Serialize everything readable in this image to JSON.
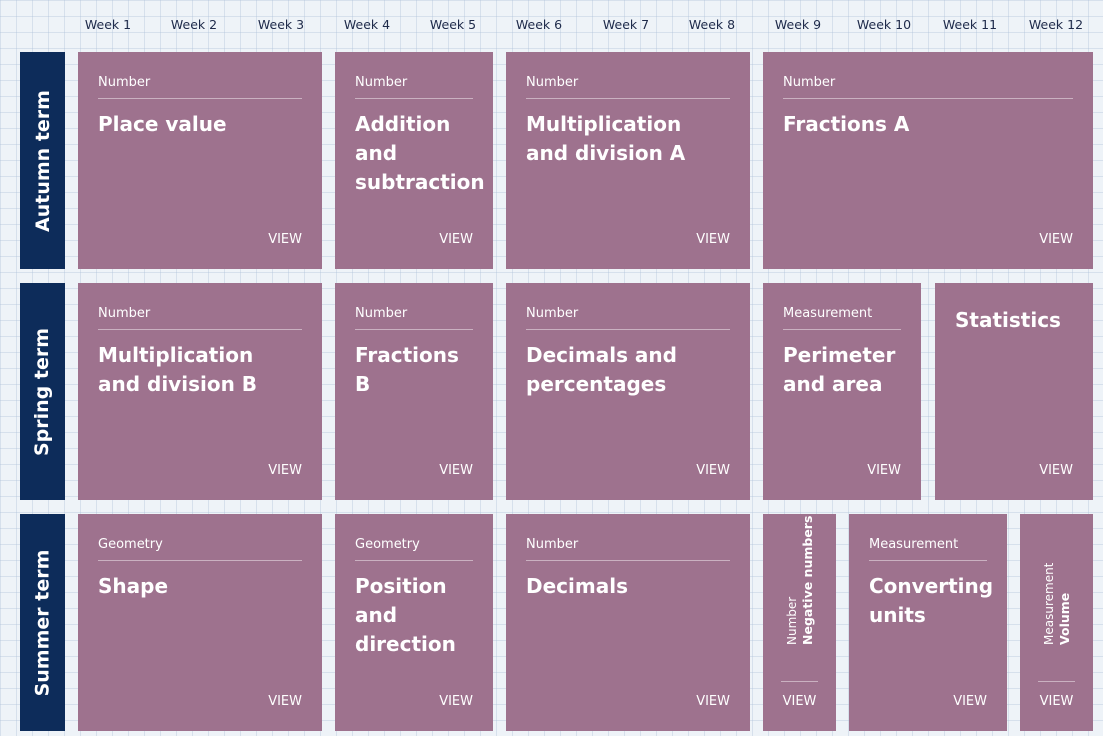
{
  "weeks": [
    "Week 1",
    "Week 2",
    "Week 3",
    "Week 4",
    "Week 5",
    "Week 6",
    "Week 7",
    "Week 8",
    "Week 9",
    "Week 10",
    "Week 11",
    "Week 12"
  ],
  "terms": {
    "autumn": "Autumn term",
    "spring": "Spring term",
    "summer": "Summer term"
  },
  "view_label": "VIEW",
  "autumn": [
    {
      "category": "Number",
      "title": "Place value"
    },
    {
      "category": "Number",
      "title": "Addition and subtraction"
    },
    {
      "category": "Number",
      "title": "Multiplication and division A"
    },
    {
      "category": "Number",
      "title": "Fractions A"
    }
  ],
  "spring": [
    {
      "category": "Number",
      "title": "Multiplication and division B"
    },
    {
      "category": "Number",
      "title": "Fractions B"
    },
    {
      "category": "Number",
      "title": "Decimals and percentages"
    },
    {
      "category": "Measurement",
      "title": "Perimeter and area"
    },
    {
      "category": "",
      "title": "Statistics"
    }
  ],
  "summer": [
    {
      "category": "Geometry",
      "title": "Shape"
    },
    {
      "category": "Geometry",
      "title": "Position and direction"
    },
    {
      "category": "Number",
      "title": "Decimals"
    },
    {
      "category": "Number",
      "title": "Negative numbers"
    },
    {
      "category": "Measurement",
      "title": "Converting units"
    },
    {
      "category": "Measurement",
      "title": "Volume"
    }
  ],
  "colors": {
    "card": "#9e728e",
    "term": "#0d2c5a"
  }
}
